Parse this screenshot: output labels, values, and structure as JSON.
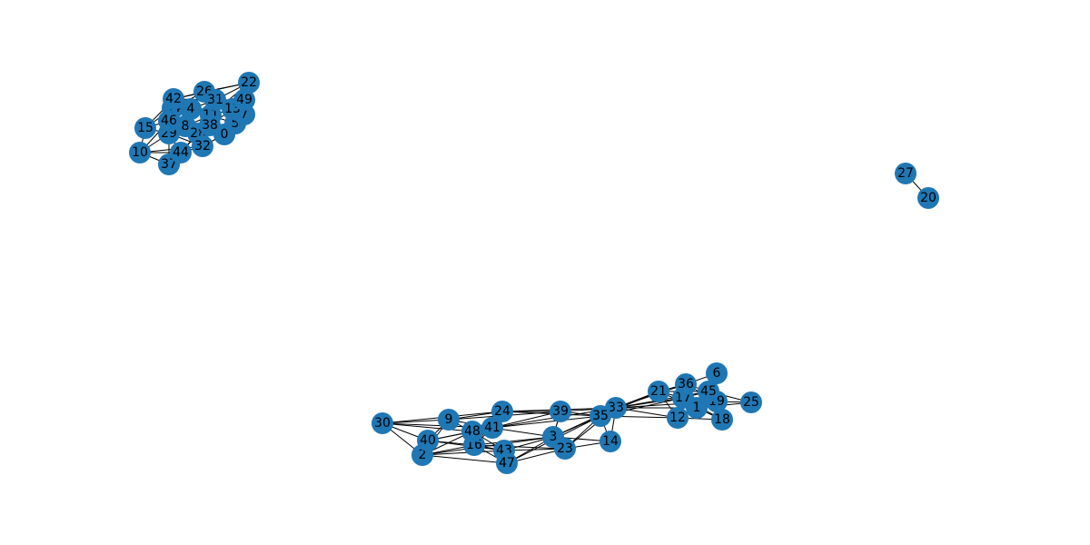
{
  "graph": {
    "node_color": "#1f77b4",
    "edge_color": "#000000",
    "label_color": "#000000",
    "nodes": [
      "0",
      "1",
      "2",
      "3",
      "4",
      "5",
      "6",
      "7",
      "8",
      "9",
      "10",
      "11",
      "12",
      "13",
      "14",
      "15",
      "16",
      "17",
      "18",
      "19",
      "20",
      "21",
      "22",
      "23",
      "24",
      "25",
      "26",
      "27",
      "28",
      "29",
      "30",
      "31",
      "32",
      "33",
      "34",
      "35",
      "36",
      "37",
      "38",
      "39",
      "40",
      "41",
      "42",
      "43",
      "44",
      "45",
      "46",
      "47",
      "48",
      "49"
    ],
    "edges": [
      [
        "22",
        "26"
      ],
      [
        "22",
        "42"
      ],
      [
        "22",
        "31"
      ],
      [
        "22",
        "49"
      ],
      [
        "22",
        "13"
      ],
      [
        "22",
        "11"
      ],
      [
        "26",
        "42"
      ],
      [
        "26",
        "31"
      ],
      [
        "26",
        "4"
      ],
      [
        "26",
        "34"
      ],
      [
        "26",
        "11"
      ],
      [
        "26",
        "13"
      ],
      [
        "42",
        "34"
      ],
      [
        "42",
        "4"
      ],
      [
        "42",
        "46"
      ],
      [
        "42",
        "15"
      ],
      [
        "42",
        "31"
      ],
      [
        "34",
        "46"
      ],
      [
        "34",
        "4"
      ],
      [
        "34",
        "15"
      ],
      [
        "34",
        "29"
      ],
      [
        "34",
        "8"
      ],
      [
        "4",
        "31"
      ],
      [
        "4",
        "11"
      ],
      [
        "4",
        "8"
      ],
      [
        "4",
        "46"
      ],
      [
        "4",
        "13"
      ],
      [
        "31",
        "49"
      ],
      [
        "31",
        "13"
      ],
      [
        "31",
        "11"
      ],
      [
        "31",
        "38"
      ],
      [
        "49",
        "13"
      ],
      [
        "49",
        "7"
      ],
      [
        "49",
        "5"
      ],
      [
        "13",
        "7"
      ],
      [
        "13",
        "11"
      ],
      [
        "13",
        "5"
      ],
      [
        "13",
        "38"
      ],
      [
        "7",
        "5"
      ],
      [
        "7",
        "0"
      ],
      [
        "11",
        "38"
      ],
      [
        "11",
        "5"
      ],
      [
        "11",
        "28"
      ],
      [
        "11",
        "8"
      ],
      [
        "38",
        "0"
      ],
      [
        "38",
        "28"
      ],
      [
        "38",
        "32"
      ],
      [
        "5",
        "0"
      ],
      [
        "15",
        "46"
      ],
      [
        "15",
        "29"
      ],
      [
        "15",
        "10"
      ],
      [
        "46",
        "29"
      ],
      [
        "46",
        "8"
      ],
      [
        "46",
        "28"
      ],
      [
        "46",
        "10"
      ],
      [
        "29",
        "10"
      ],
      [
        "29",
        "28"
      ],
      [
        "29",
        "8"
      ],
      [
        "29",
        "37"
      ],
      [
        "29",
        "44"
      ],
      [
        "29",
        "32"
      ],
      [
        "8",
        "28"
      ],
      [
        "8",
        "32"
      ],
      [
        "8",
        "38"
      ],
      [
        "28",
        "32"
      ],
      [
        "28",
        "0"
      ],
      [
        "28",
        "44"
      ],
      [
        "28",
        "37"
      ],
      [
        "10",
        "37"
      ],
      [
        "10",
        "44"
      ],
      [
        "10",
        "32"
      ],
      [
        "37",
        "44"
      ],
      [
        "44",
        "32"
      ],
      [
        "32",
        "0"
      ],
      [
        "27",
        "20"
      ],
      [
        "30",
        "9"
      ],
      [
        "30",
        "48"
      ],
      [
        "30",
        "40"
      ],
      [
        "30",
        "2"
      ],
      [
        "30",
        "41"
      ],
      [
        "30",
        "24"
      ],
      [
        "9",
        "48"
      ],
      [
        "9",
        "40"
      ],
      [
        "9",
        "24"
      ],
      [
        "9",
        "41"
      ],
      [
        "9",
        "2"
      ],
      [
        "9",
        "39"
      ],
      [
        "40",
        "2"
      ],
      [
        "40",
        "48"
      ],
      [
        "40",
        "16"
      ],
      [
        "40",
        "43"
      ],
      [
        "40",
        "41"
      ],
      [
        "2",
        "16"
      ],
      [
        "2",
        "48"
      ],
      [
        "2",
        "47"
      ],
      [
        "2",
        "43"
      ],
      [
        "2",
        "3"
      ],
      [
        "48",
        "41"
      ],
      [
        "48",
        "16"
      ],
      [
        "48",
        "24"
      ],
      [
        "48",
        "43"
      ],
      [
        "41",
        "24"
      ],
      [
        "41",
        "16"
      ],
      [
        "41",
        "39"
      ],
      [
        "41",
        "35"
      ],
      [
        "41",
        "33"
      ],
      [
        "41",
        "3"
      ],
      [
        "24",
        "39"
      ],
      [
        "24",
        "35"
      ],
      [
        "24",
        "16"
      ],
      [
        "24",
        "33"
      ],
      [
        "16",
        "43"
      ],
      [
        "16",
        "47"
      ],
      [
        "16",
        "3"
      ],
      [
        "16",
        "23"
      ],
      [
        "43",
        "47"
      ],
      [
        "43",
        "23"
      ],
      [
        "43",
        "3"
      ],
      [
        "47",
        "23"
      ],
      [
        "47",
        "3"
      ],
      [
        "47",
        "35"
      ],
      [
        "3",
        "23"
      ],
      [
        "3",
        "35"
      ],
      [
        "3",
        "33"
      ],
      [
        "3",
        "14"
      ],
      [
        "3",
        "39"
      ],
      [
        "23",
        "35"
      ],
      [
        "23",
        "14"
      ],
      [
        "23",
        "33"
      ],
      [
        "39",
        "35"
      ],
      [
        "39",
        "33"
      ],
      [
        "39",
        "3"
      ],
      [
        "35",
        "33"
      ],
      [
        "35",
        "14"
      ],
      [
        "35",
        "21"
      ],
      [
        "35",
        "17"
      ],
      [
        "35",
        "12"
      ],
      [
        "33",
        "14"
      ],
      [
        "33",
        "21"
      ],
      [
        "33",
        "17"
      ],
      [
        "33",
        "12"
      ],
      [
        "33",
        "1"
      ],
      [
        "33",
        "36"
      ],
      [
        "33",
        "45"
      ],
      [
        "33",
        "19"
      ],
      [
        "21",
        "36"
      ],
      [
        "21",
        "17"
      ],
      [
        "21",
        "45"
      ],
      [
        "21",
        "12"
      ],
      [
        "21",
        "1"
      ],
      [
        "36",
        "6"
      ],
      [
        "36",
        "45"
      ],
      [
        "36",
        "17"
      ],
      [
        "36",
        "19"
      ],
      [
        "36",
        "1"
      ],
      [
        "6",
        "45"
      ],
      [
        "6",
        "19"
      ],
      [
        "45",
        "19"
      ],
      [
        "45",
        "17"
      ],
      [
        "45",
        "1"
      ],
      [
        "45",
        "25"
      ],
      [
        "17",
        "1"
      ],
      [
        "17",
        "12"
      ],
      [
        "17",
        "18"
      ],
      [
        "17",
        "19"
      ],
      [
        "1",
        "12"
      ],
      [
        "1",
        "18"
      ],
      [
        "1",
        "19"
      ],
      [
        "1",
        "25"
      ],
      [
        "19",
        "25"
      ],
      [
        "19",
        "18"
      ],
      [
        "12",
        "18"
      ]
    ]
  }
}
